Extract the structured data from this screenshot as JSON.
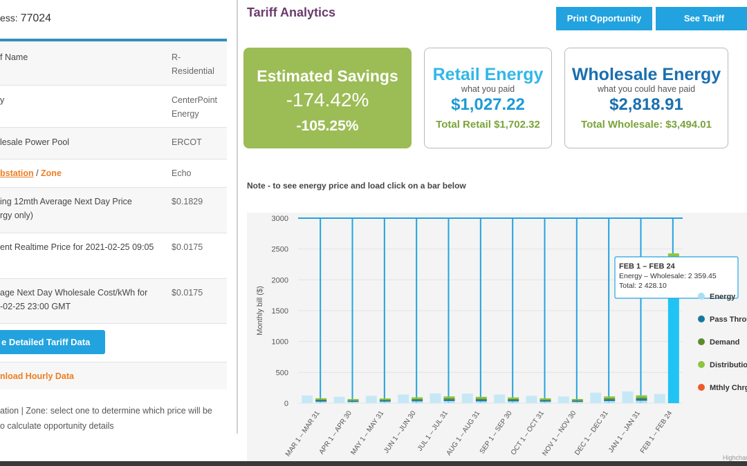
{
  "left": {
    "address_label": "ess:",
    "address_value": "77024",
    "rows": [
      {
        "label": "f Name",
        "value": "R-\nResidential"
      },
      {
        "label": "y",
        "value": "CenterPoint\nEnergy"
      },
      {
        "label": "lesale Power Pool",
        "value": "ERCOT"
      },
      {
        "label_part1": "bstation",
        "label_sep": " / ",
        "label_part2": "Zone",
        "value": "Echo"
      },
      {
        "label": "ing 12mth Average Next Day Price\nrgy only)",
        "value": "$0.1829"
      },
      {
        "label": "ent Realtime Price for 2021-02-25 09:05",
        "value": "$0.0175"
      },
      {
        "label": "age Next Day Wholesale Cost/kWh for\n-02-25 23:00 GMT",
        "value": "$0.0175"
      }
    ],
    "detail_button": "e Detailed Tariff Data",
    "download_link": "nload Hourly Data",
    "footnote": "ation | Zone: select one to determine which price will be\no calculate opportunity details"
  },
  "header": {
    "title": "Tariff Analytics",
    "print_button": "Print Opportunity",
    "see_tariff_button": "See Tariff"
  },
  "cards": {
    "savings": {
      "title": "Estimated Savings",
      "pct1": "-174.42%",
      "pct2": "-105.25%"
    },
    "retail": {
      "title": "Retail Energy",
      "subtitle": "what you paid",
      "amount": "$1,027.22",
      "total": "Total Retail $1,702.32"
    },
    "wholesale": {
      "title": "Wholesale Energy",
      "subtitle": "what you could have paid",
      "amount": "$2,818.91",
      "total": "Total Wholesale: $3,494.01"
    }
  },
  "note": "Note - to see energy price and load click on a bar below",
  "colors": {
    "accent": "#22a3df",
    "title_purple": "#6b3a6b",
    "orange": "#ee7d22",
    "savings_green": "#9cbc55",
    "energy": "#a8ddf2",
    "pass_through": "#16789f",
    "demand": "#5c8b2b",
    "distribution": "#8cc63f",
    "mthly_chrg": "#f05a28",
    "highlight": "#21c3f5"
  },
  "chart_data": {
    "type": "bar",
    "ylabel": "Monthly bill ($)",
    "ylim": [
      0,
      3000
    ],
    "yticks": [
      "0",
      "500",
      "1000",
      "1500",
      "2000",
      "2500",
      "3000"
    ],
    "categories": [
      "MAR 1 – MAR 31",
      "APR 1 – APR 30",
      "MAY 1 – MAY 31",
      "JUN 1 – JUN 30",
      "JUL 1 – JUL 31",
      "AUG 1 – AUG 31",
      "SEP 1 – SEP 30",
      "OCT 1 – OCT 31",
      "NOV 1 – NOV 30",
      "DEC 1 – DEC 31",
      "JAN 1 – JAN 31",
      "FEB 1 – FEB 24"
    ],
    "retail_totals": [
      125,
      105,
      120,
      140,
      160,
      155,
      140,
      120,
      110,
      170,
      190,
      150
    ],
    "wholesale_series": [
      {
        "name": "Energy",
        "values": [
          25,
          22,
          25,
          30,
          35,
          30,
          30,
          25,
          22,
          35,
          40,
          2359.45
        ]
      },
      {
        "name": "Pass Throu",
        "values": [
          20,
          15,
          18,
          22,
          25,
          25,
          20,
          18,
          15,
          25,
          30,
          0
        ]
      },
      {
        "name": "Demand",
        "values": [
          15,
          12,
          14,
          18,
          20,
          20,
          18,
          15,
          13,
          20,
          22,
          0
        ]
      },
      {
        "name": "Distributio",
        "values": [
          20,
          18,
          20,
          25,
          30,
          28,
          25,
          22,
          18,
          30,
          35,
          68.65
        ]
      },
      {
        "name": "Mthly Chrg",
        "values": [
          0,
          0,
          0,
          0,
          0,
          0,
          0,
          0,
          0,
          0,
          0,
          0
        ]
      }
    ],
    "tooltip": {
      "title": "FEB 1 – FEB 24",
      "line1": "Energy – Wholesale: 2 359.45",
      "line2": "Total: 2 428.10"
    },
    "legend": [
      "Energy",
      "Pass Throu",
      "Demand",
      "Distributio",
      "Mthly Chrg"
    ],
    "credit": "Highchar"
  }
}
